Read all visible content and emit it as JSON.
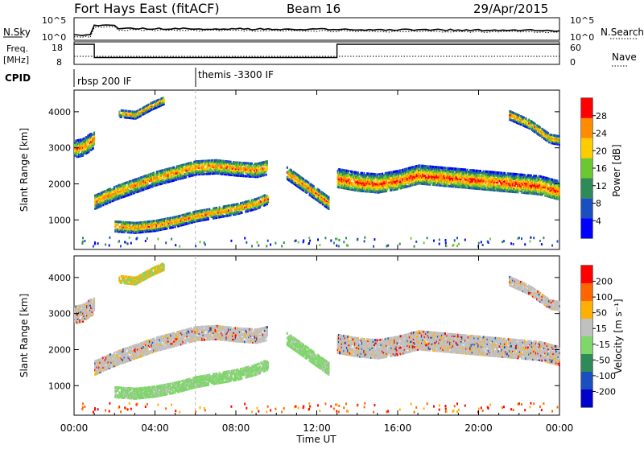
{
  "header": {
    "station": "Fort Hays East (fitACF)",
    "beam": "Beam 16",
    "date": "29/Apr/2015"
  },
  "noise_panel": {
    "left_label": "N.Sky",
    "right_label": "N.Search",
    "left_ticks": [
      "10^5",
      "10^0"
    ],
    "right_ticks": [
      "10^5",
      "10^0"
    ]
  },
  "freq_panel": {
    "left_label_1": "Freq.",
    "left_label_2": "[MHz]",
    "right_label": "Nave",
    "left_ticks": [
      "18",
      "8"
    ],
    "right_ticks": [
      "60",
      "0"
    ],
    "freq_steps": [
      {
        "t": 0.0,
        "mhz": 18
      },
      {
        "t": 1.0,
        "mhz": 10.5
      },
      {
        "t": 13.0,
        "mhz": 18
      },
      {
        "t": 24.0,
        "mhz": 18
      }
    ]
  },
  "cpid_panel": {
    "label": "CPID",
    "segments": [
      {
        "t": 0.0,
        "name": "rbsp 200 IF"
      },
      {
        "t": 6.0,
        "name": "themis -3300 IF"
      }
    ]
  },
  "power_panel": {
    "ylabel": "Slant Range [km]",
    "yticks": [
      "4000",
      "3000",
      "2000",
      "1000"
    ],
    "cbar_label": "Power [dB]",
    "cbar_ticks": [
      "28",
      "24",
      "20",
      "16",
      "12",
      "8",
      "4"
    ],
    "colors": [
      "#0000ff",
      "#1a4fc0",
      "#2e8b57",
      "#6cc832",
      "#ffcc00",
      "#ff8c00",
      "#ff0000"
    ]
  },
  "velocity_panel": {
    "ylabel": "Slant Range [km]",
    "yticks": [
      "4000",
      "3000",
      "2000",
      "1000"
    ],
    "cbar_label": "Velocity [m s⁻¹]",
    "cbar_ticks": [
      "200",
      "100",
      "50",
      "15",
      "-15",
      "-50",
      "-100",
      "-200"
    ],
    "colors": [
      "#ff0000",
      "#ff6600",
      "#ffb000",
      "#c0c0c0",
      "#7fd66a",
      "#2e8b57",
      "#1a4fc0",
      "#0000cc"
    ]
  },
  "chart_data": {
    "type": "heatmap",
    "title": "Fort Hays East (fitACF)",
    "xlabel": "Time UT",
    "ylabel": "Slant Range [km]",
    "xlim": [
      0,
      24
    ],
    "ylim": [
      180,
      4600
    ],
    "x_ticks": [
      "00:00",
      "04:00",
      "08:00",
      "12:00",
      "16:00",
      "20:00",
      "00:00"
    ],
    "x_tick_hours": [
      0,
      4,
      8,
      12,
      16,
      20,
      24
    ],
    "scatter_regions": [
      {
        "name": "",
        "path": [
          [
            0.0,
            2950
          ],
          [
            0.4,
            3000
          ],
          [
            0.8,
            3150
          ],
          [
            1.0,
            3250
          ],
          [
            1.0,
            3050
          ]
        ],
        "width_km": 450
      },
      {
        "name": "",
        "path": [
          [
            1.0,
            1500
          ],
          [
            2.0,
            1750
          ],
          [
            3.0,
            1950
          ],
          [
            4.0,
            2150
          ],
          [
            5.0,
            2300
          ],
          [
            6.0,
            2450
          ],
          [
            7.0,
            2480
          ],
          [
            8.0,
            2420
          ],
          [
            9.0,
            2380
          ],
          [
            9.5,
            2450
          ]
        ],
        "width_km": 400
      },
      {
        "name": "",
        "path": [
          [
            10.5,
            2300
          ],
          [
            11.0,
            2100
          ],
          [
            11.5,
            1900
          ],
          [
            12.0,
            1700
          ],
          [
            12.6,
            1450
          ]
        ],
        "width_km": 350
      },
      {
        "name": "",
        "path": [
          [
            13.0,
            2150
          ],
          [
            14.0,
            2050
          ],
          [
            15.0,
            2000
          ],
          [
            16.0,
            2100
          ],
          [
            17.0,
            2250
          ],
          [
            18.0,
            2200
          ],
          [
            19.0,
            2150
          ],
          [
            20.0,
            2100
          ],
          [
            21.0,
            2050
          ],
          [
            22.0,
            2000
          ],
          [
            23.0,
            1950
          ],
          [
            24.0,
            1800
          ]
        ],
        "width_km": 500
      },
      {
        "name": "",
        "path": [
          [
            2.0,
            820
          ],
          [
            3.0,
            780
          ],
          [
            4.0,
            840
          ],
          [
            5.0,
            950
          ],
          [
            6.0,
            1100
          ],
          [
            7.0,
            1200
          ],
          [
            8.0,
            1300
          ],
          [
            9.0,
            1450
          ],
          [
            9.6,
            1600
          ]
        ],
        "width_km": 300
      },
      {
        "name": "",
        "path": [
          [
            2.2,
            3950
          ],
          [
            3.0,
            3900
          ],
          [
            3.8,
            4150
          ],
          [
            4.4,
            4300
          ]
        ],
        "width_km": 200
      },
      {
        "name": "",
        "path": [
          [
            21.5,
            3900
          ],
          [
            22.5,
            3650
          ],
          [
            23.5,
            3250
          ],
          [
            24.0,
            3200
          ]
        ],
        "width_km": 250
      }
    ]
  }
}
